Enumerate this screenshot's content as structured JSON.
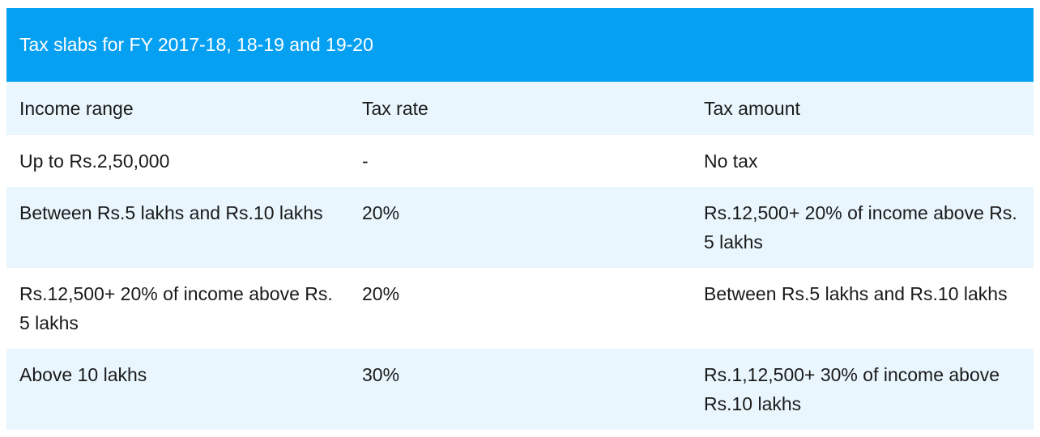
{
  "header": {
    "title": "Tax slabs for FY 2017-18, 18-19 and 19-20"
  },
  "table": {
    "columns": [
      "Income range",
      "Tax rate",
      "Tax amount"
    ],
    "rows": [
      [
        "Up to Rs.2,50,000",
        "-",
        "No tax"
      ],
      [
        "Between Rs.5 lakhs and Rs.10 lakhs",
        "20%",
        "Rs.12,500+ 20% of income above Rs. 5 lakhs"
      ],
      [
        "Rs.12,500+ 20% of income above Rs. 5 lakhs",
        "20%",
        "Between Rs.5 lakhs and Rs.10 lakhs"
      ],
      [
        "Above 10 lakhs",
        "30%",
        "Rs.1,12,500+ 30% of income above Rs.10 lakhs"
      ]
    ]
  }
}
